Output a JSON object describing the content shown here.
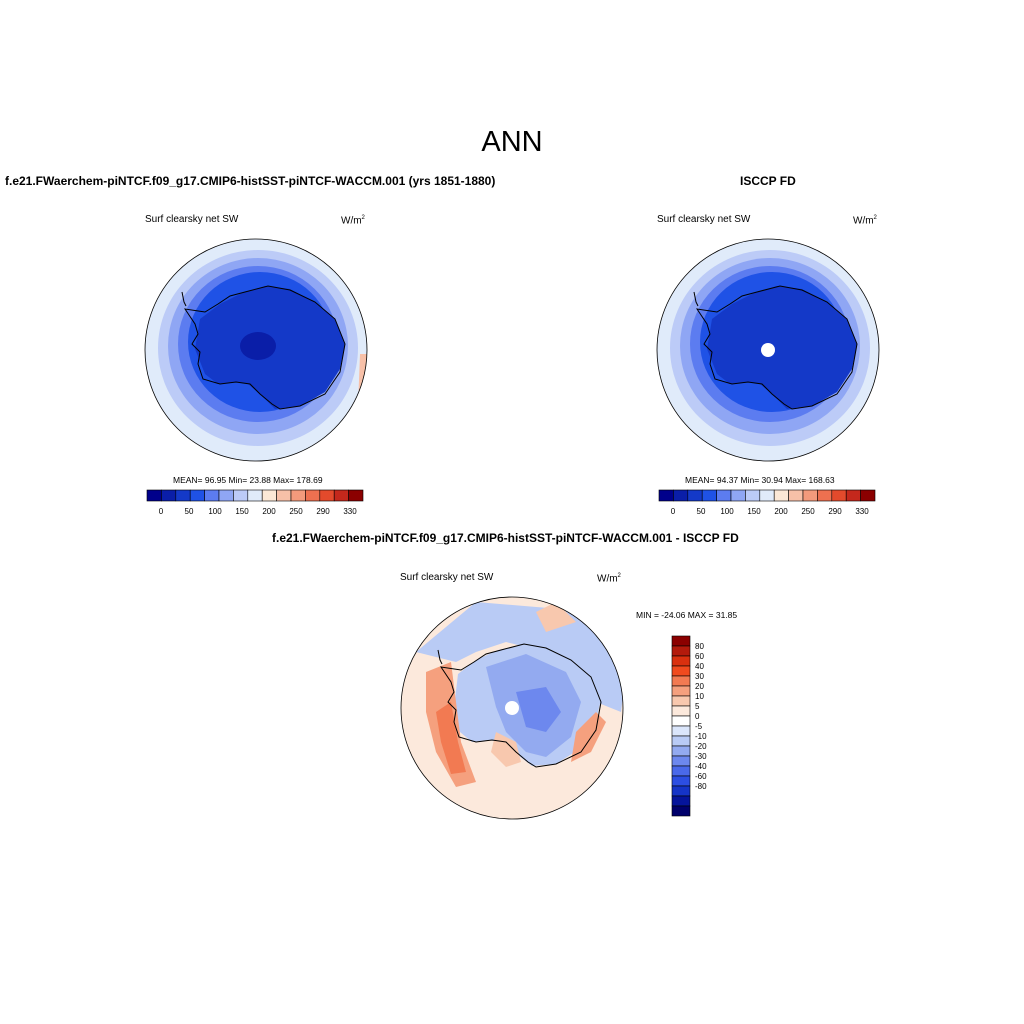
{
  "main_title": "ANN",
  "panels": [
    {
      "title": "f.e21.FWaerchem-piNTCF.f09_g17.CMIP6-histSST-piNTCF-WACCM.001 (yrs 1851-1880)",
      "variable": "Surf clearsky net SW",
      "units": "W/m",
      "units_sup": "2",
      "stats": "MEAN=  96.95  Min=  23.88  Max= 178.69"
    },
    {
      "title": "ISCCP FD",
      "variable": "Surf clearsky net SW",
      "units": "W/m",
      "units_sup": "2",
      "stats": "MEAN=  94.37  Min=  30.94  Max= 168.63"
    },
    {
      "title": "f.e21.FWaerchem-piNTCF.f09_g17.CMIP6-histSST-piNTCF-WACCM.001 - ISCCP FD",
      "variable": "Surf clearsky net SW",
      "units": "W/m",
      "units_sup": "2",
      "stats": "MIN = -24.06 MAX =  31.85"
    }
  ],
  "colorbar_horizontal": {
    "colors": [
      "#00008b",
      "#0a1ea8",
      "#1439c8",
      "#1f52e6",
      "#5c7cf0",
      "#8fa6f4",
      "#bccbf7",
      "#e0ebfa",
      "#fbe8d6",
      "#f7c0a8",
      "#f39a7c",
      "#ed7050",
      "#e34a2c",
      "#c4281c",
      "#8b0000"
    ],
    "labels": [
      "0",
      "50",
      "100",
      "150",
      "200",
      "250",
      "290",
      "330"
    ]
  },
  "colorbar_vertical": {
    "colors_top_to_bottom": [
      "#8b0000",
      "#b31a0c",
      "#d9300f",
      "#f04a1e",
      "#f27a52",
      "#f5a07e",
      "#f8c8ae",
      "#fce9dc",
      "#ffffff",
      "#dbe6fb",
      "#b9cbf5",
      "#93aaf0",
      "#6d88ee",
      "#4a69ea",
      "#2c4ee2",
      "#1534c7",
      "#05149b",
      "#00006b"
    ],
    "labels": [
      "80",
      "60",
      "40",
      "30",
      "20",
      "10",
      "5",
      "0",
      "-5",
      "-10",
      "-20",
      "-30",
      "-40",
      "-60",
      "-80"
    ]
  }
}
